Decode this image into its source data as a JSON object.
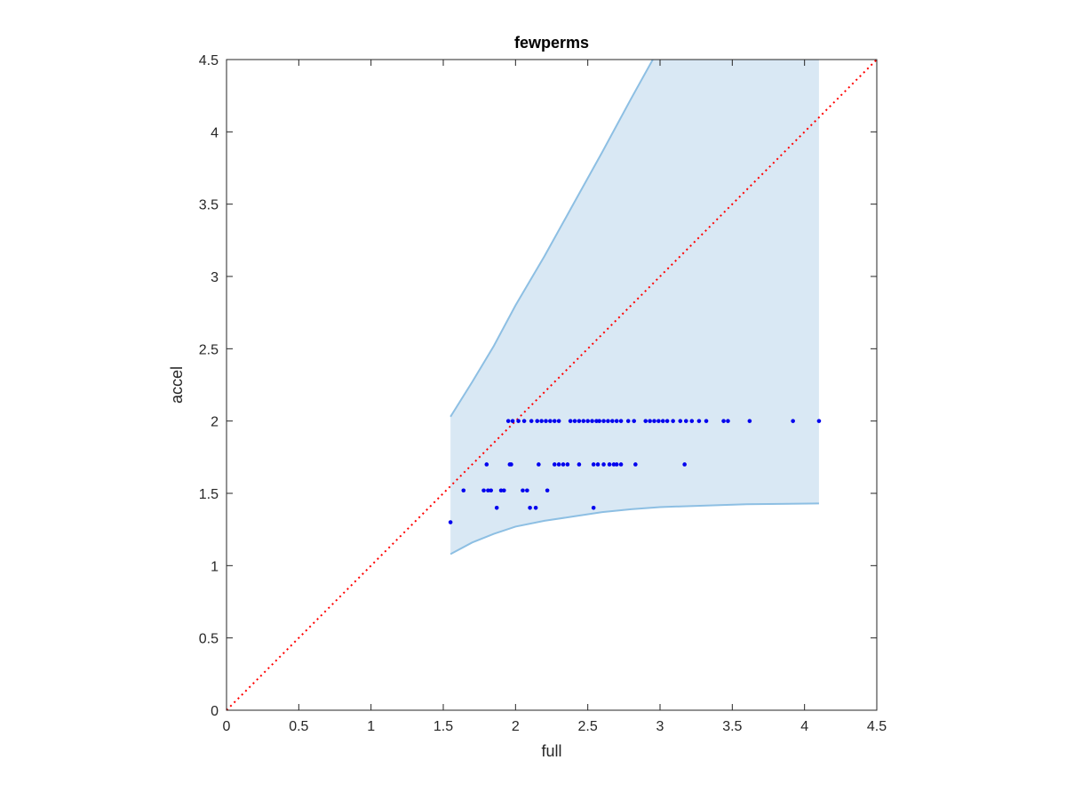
{
  "chart_data": {
    "type": "scatter",
    "title": "fewperms",
    "xlabel": "full",
    "ylabel": "accel",
    "xlim": [
      0,
      4.5
    ],
    "ylim": [
      0,
      4.5
    ],
    "xticks": [
      "0",
      "0.5",
      "1",
      "1.5",
      "2",
      "2.5",
      "3",
      "3.5",
      "4",
      "4.5"
    ],
    "yticks": [
      "0",
      "0.5",
      "1",
      "1.5",
      "2",
      "2.5",
      "3",
      "3.5",
      "4",
      "4.5"
    ],
    "grid": false,
    "legend": "none",
    "colors": {
      "points": "#0000ee",
      "band_fill": "#d9e8f4",
      "band_edge": "#8dbfe3",
      "diagonal": "#ff0000",
      "axis": "#262626"
    },
    "band": {
      "upper": [
        [
          1.55,
          2.03
        ],
        [
          1.7,
          2.27
        ],
        [
          1.85,
          2.52
        ],
        [
          2.0,
          2.8
        ],
        [
          2.2,
          3.14
        ],
        [
          2.4,
          3.5
        ],
        [
          2.6,
          3.86
        ],
        [
          2.8,
          4.23
        ],
        [
          2.95,
          4.5
        ],
        [
          4.1,
          4.5
        ]
      ],
      "lower": [
        [
          1.55,
          1.08
        ],
        [
          1.7,
          1.16
        ],
        [
          1.85,
          1.22
        ],
        [
          2.0,
          1.27
        ],
        [
          2.2,
          1.31
        ],
        [
          2.4,
          1.34
        ],
        [
          2.6,
          1.37
        ],
        [
          2.8,
          1.39
        ],
        [
          3.0,
          1.405
        ],
        [
          3.3,
          1.415
        ],
        [
          3.6,
          1.425
        ],
        [
          4.1,
          1.43
        ]
      ]
    },
    "diagonal": [
      [
        0,
        0
      ],
      [
        4.5,
        4.5
      ]
    ],
    "points": [
      [
        1.55,
        1.3
      ],
      [
        1.64,
        1.52
      ],
      [
        1.78,
        1.52
      ],
      [
        1.81,
        1.52
      ],
      [
        1.83,
        1.52
      ],
      [
        1.9,
        1.52
      ],
      [
        1.92,
        1.52
      ],
      [
        2.05,
        1.52
      ],
      [
        2.08,
        1.52
      ],
      [
        2.22,
        1.52
      ],
      [
        1.87,
        1.4
      ],
      [
        2.1,
        1.4
      ],
      [
        2.14,
        1.4
      ],
      [
        2.54,
        1.4
      ],
      [
        1.8,
        1.7
      ],
      [
        1.96,
        1.7
      ],
      [
        1.97,
        1.7
      ],
      [
        2.16,
        1.7
      ],
      [
        2.27,
        1.7
      ],
      [
        2.3,
        1.7
      ],
      [
        2.33,
        1.7
      ],
      [
        2.36,
        1.7
      ],
      [
        2.44,
        1.7
      ],
      [
        2.54,
        1.7
      ],
      [
        2.57,
        1.7
      ],
      [
        2.61,
        1.7
      ],
      [
        2.65,
        1.7
      ],
      [
        2.68,
        1.7
      ],
      [
        2.7,
        1.7
      ],
      [
        2.73,
        1.7
      ],
      [
        2.83,
        1.7
      ],
      [
        3.17,
        1.7
      ],
      [
        1.95,
        2.0
      ],
      [
        1.98,
        2.0
      ],
      [
        2.02,
        2.0
      ],
      [
        2.06,
        2.0
      ],
      [
        2.11,
        2.0
      ],
      [
        2.15,
        2.0
      ],
      [
        2.18,
        2.0
      ],
      [
        2.21,
        2.0
      ],
      [
        2.24,
        2.0
      ],
      [
        2.27,
        2.0
      ],
      [
        2.3,
        2.0
      ],
      [
        2.38,
        2.0
      ],
      [
        2.41,
        2.0
      ],
      [
        2.44,
        2.0
      ],
      [
        2.47,
        2.0
      ],
      [
        2.5,
        2.0
      ],
      [
        2.53,
        2.0
      ],
      [
        2.56,
        2.0
      ],
      [
        2.58,
        2.0
      ],
      [
        2.61,
        2.0
      ],
      [
        2.64,
        2.0
      ],
      [
        2.67,
        2.0
      ],
      [
        2.7,
        2.0
      ],
      [
        2.73,
        2.0
      ],
      [
        2.78,
        2.0
      ],
      [
        2.82,
        2.0
      ],
      [
        2.9,
        2.0
      ],
      [
        2.93,
        2.0
      ],
      [
        2.96,
        2.0
      ],
      [
        2.99,
        2.0
      ],
      [
        3.02,
        2.0
      ],
      [
        3.05,
        2.0
      ],
      [
        3.09,
        2.0
      ],
      [
        3.14,
        2.0
      ],
      [
        3.18,
        2.0
      ],
      [
        3.22,
        2.0
      ],
      [
        3.27,
        2.0
      ],
      [
        3.32,
        2.0
      ],
      [
        3.44,
        2.0
      ],
      [
        3.47,
        2.0
      ],
      [
        3.62,
        2.0
      ],
      [
        3.92,
        2.0
      ],
      [
        4.1,
        2.0
      ]
    ]
  }
}
